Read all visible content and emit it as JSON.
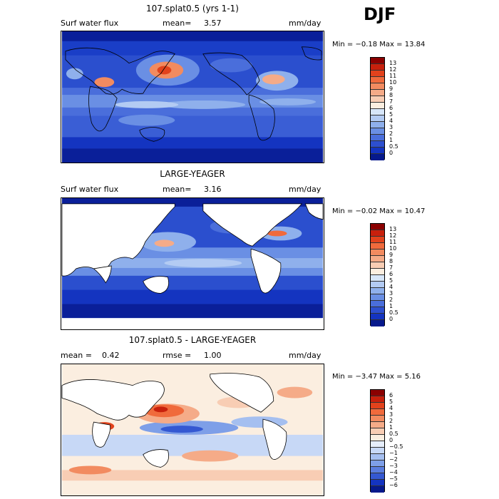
{
  "season": "DJF",
  "panels": [
    {
      "title": "107.splat0.5 (yrs 1-1)",
      "left_label": "Surf water flux",
      "center_label": "mean=",
      "center_value": "3.57",
      "units": "mm/day",
      "stats": "Min =  −0.18 Max =  13.84",
      "levels": [
        "13",
        "12",
        "11",
        "10",
        "9",
        "8",
        "7",
        "6",
        "5",
        "4",
        "3",
        "2",
        "1",
        "0.5",
        "0"
      ],
      "colors": [
        "#8b0000",
        "#c8200c",
        "#e2421c",
        "#f06a3c",
        "#f28b60",
        "#f5ab88",
        "#f8cdb4",
        "#fbeee0",
        "#d7e6f9",
        "#b3cbf3",
        "#8fb0ec",
        "#6a8fe4",
        "#4a6edb",
        "#2d4fcf",
        "#1434c0",
        "#06198c"
      ]
    },
    {
      "title": "LARGE-YEAGER",
      "left_label": "Surf water flux",
      "center_label": "mean=",
      "center_value": "3.16",
      "units": "mm/day",
      "stats": "Min =  −0.02 Max =  10.47",
      "levels": [
        "13",
        "12",
        "11",
        "10",
        "9",
        "8",
        "7",
        "6",
        "5",
        "4",
        "3",
        "2",
        "1",
        "0.5",
        "0"
      ],
      "colors": [
        "#8b0000",
        "#c8200c",
        "#e2421c",
        "#f06a3c",
        "#f28b60",
        "#f5ab88",
        "#f8cdb4",
        "#fbeee0",
        "#d7e6f9",
        "#b3cbf3",
        "#8fb0ec",
        "#6a8fe4",
        "#4a6edb",
        "#2d4fcf",
        "#1434c0",
        "#06198c"
      ]
    },
    {
      "title": "107.splat0.5 - LARGE-YEAGER",
      "left_label": "mean =",
      "left_value": "0.42",
      "center_label": "rmse =",
      "center_value": "1.00",
      "units": "mm/day",
      "stats": "Min =  −3.47 Max =   5.16",
      "levels": [
        "6",
        "5",
        "4",
        "3",
        "2",
        "1",
        "0.5",
        "0",
        "−0.5",
        "−1",
        "−2",
        "−3",
        "−4",
        "−5",
        "−6"
      ],
      "colors": [
        "#8b0000",
        "#c8200c",
        "#e2421c",
        "#f06a3c",
        "#f28b60",
        "#f5ab88",
        "#f8cdb4",
        "#fbeee0",
        "#e6eefb",
        "#c7d8f6",
        "#a5bff0",
        "#7e9fe8",
        "#5a7ddf",
        "#3458d2",
        "#1434c0",
        "#06198c"
      ]
    }
  ]
}
